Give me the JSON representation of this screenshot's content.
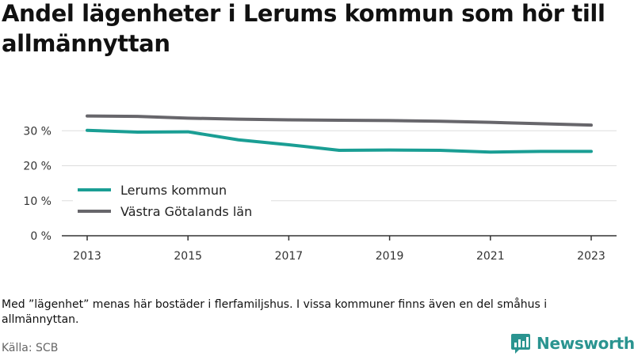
{
  "title": "Andel lägenheter i Lerums kommun som hör till allmännyttan",
  "note": "Med ”lägenhet” menas här bostäder i flerfamiljshus. I vissa kommuner finns även en del småhus i allmännyttan.",
  "source": "Källa: SCB",
  "brand": {
    "name": "Newsworthy",
    "color": "#2a9490",
    "icon": "newsworthy-logo-icon"
  },
  "chart_data": {
    "type": "line",
    "x": [
      2013,
      2014,
      2015,
      2016,
      2017,
      2018,
      2019,
      2020,
      2021,
      2022,
      2023
    ],
    "x_ticks": [
      "2013",
      "2015",
      "2017",
      "2019",
      "2021",
      "2023"
    ],
    "y_ticks": [
      "0 %",
      "10 %",
      "20 %",
      "30 %"
    ],
    "ylim": [
      0,
      40
    ],
    "grid": true,
    "legend_placement": "bottom-left",
    "series": [
      {
        "name": "Lerums kommun",
        "color": "#1a9e94",
        "values": [
          30.1,
          29.6,
          29.7,
          27.4,
          26.0,
          24.4,
          24.5,
          24.4,
          23.9,
          24.1,
          24.1
        ]
      },
      {
        "name": "Västra Götalands län",
        "color": "#67666b",
        "values": [
          34.2,
          34.1,
          33.6,
          33.3,
          33.1,
          33.0,
          32.9,
          32.7,
          32.4,
          32.0,
          31.6
        ]
      }
    ]
  }
}
